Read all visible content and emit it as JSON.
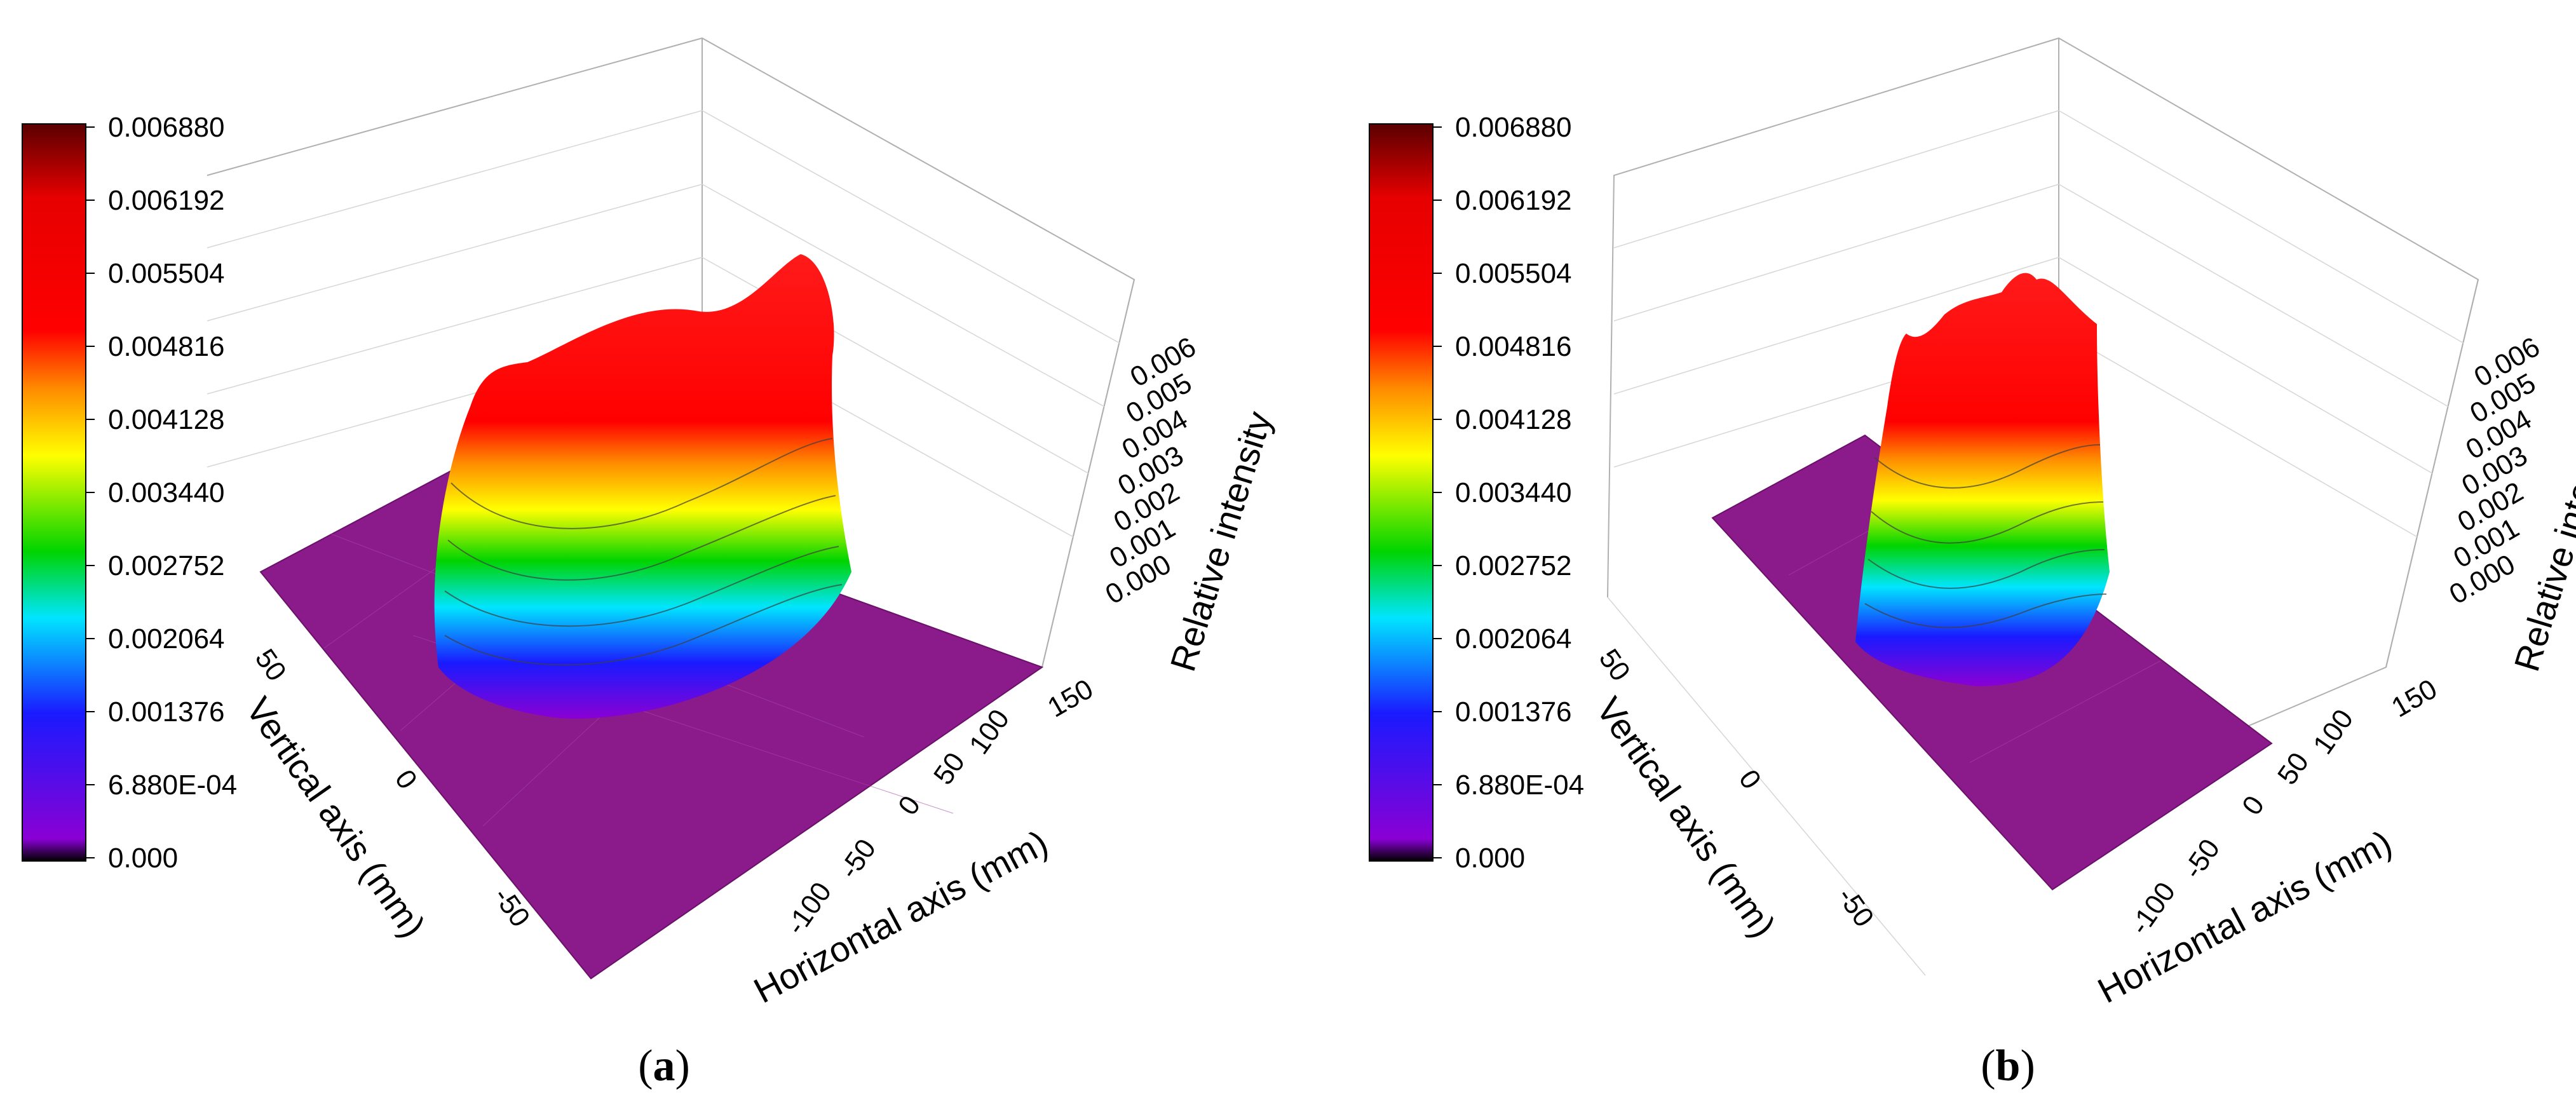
{
  "chart_data": [
    {
      "type": "surface3d",
      "panel_label_open": "(",
      "panel_label": "a",
      "panel_label_close": ")",
      "colorbar": {
        "colors": [
          "#000000",
          "#8a00d4",
          "#1a1aff",
          "#00e5ff",
          "#00d400",
          "#ffff00",
          "#ff8c00",
          "#ff0000",
          "#e60000",
          "#5a0000"
        ],
        "tick_labels": [
          "0.006880",
          "0.006192",
          "0.005504",
          "0.004816",
          "0.004128",
          "0.003440",
          "0.002752",
          "0.002064",
          "0.001376",
          "6.880E-04",
          "0.000"
        ],
        "range": [
          0,
          0.00688
        ]
      },
      "z_axis": {
        "label": "Relative intensity",
        "tick_labels": [
          "0.006",
          "0.005",
          "0.004",
          "0.003",
          "0.002",
          "0.001",
          "0.000"
        ],
        "overlap_label": "150"
      },
      "x_axis": {
        "label": "Horizontal axis (mm)",
        "tick_labels": [
          "100",
          "50",
          "0",
          "-50",
          "-100"
        ]
      },
      "y_axis": {
        "label": "Vertical  axis (mm)",
        "tick_labels": [
          "50",
          "0",
          "-50"
        ]
      },
      "floor_color": "#8b1a8b",
      "plateau_level": 0.0062,
      "plateau_extent_mm": {
        "horizontal": [
          -90,
          90
        ],
        "vertical": [
          -60,
          60
        ]
      }
    },
    {
      "type": "surface3d",
      "panel_label_open": "(",
      "panel_label": "b",
      "panel_label_close": ")",
      "colorbar": {
        "colors": [
          "#000000",
          "#8a00d4",
          "#1a1aff",
          "#00e5ff",
          "#00d400",
          "#ffff00",
          "#ff8c00",
          "#ff0000",
          "#e60000",
          "#5a0000"
        ],
        "tick_labels": [
          "0.006880",
          "0.006192",
          "0.005504",
          "0.004816",
          "0.004128",
          "0.003440",
          "0.002752",
          "0.002064",
          "0.001376",
          "6.880E-04",
          "0.000"
        ],
        "range": [
          0,
          0.00688
        ]
      },
      "z_axis": {
        "label": "Relative intensity",
        "tick_labels": [
          "0.006",
          "0.005",
          "0.004",
          "0.003",
          "0.002",
          "0.001",
          "0.000"
        ],
        "overlap_label": "150"
      },
      "x_axis": {
        "label": "Horizontal axis (mm)",
        "tick_labels": [
          "100",
          "50",
          "0",
          "-50",
          "-100"
        ]
      },
      "y_axis": {
        "label": "Vertical  axis (mm)",
        "tick_labels": [
          "50",
          "0",
          "-50"
        ]
      },
      "floor_color": "#8b1a8b",
      "plateau_level": 0.0062,
      "plateau_extent_mm": {
        "horizontal": [
          -40,
          40
        ],
        "vertical": [
          -60,
          60
        ]
      }
    }
  ]
}
